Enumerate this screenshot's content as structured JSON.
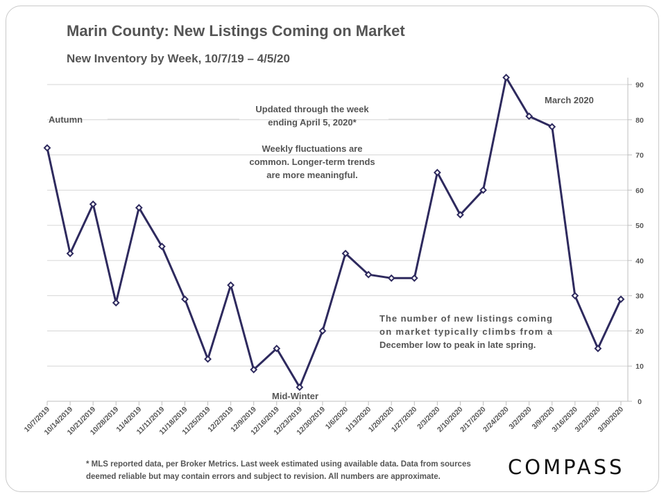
{
  "chart_data": {
    "type": "line",
    "title": "Marin County: New Listings Coming on Market",
    "subtitle": "New Inventory by Week, 10/7/19 – 4/5/20",
    "categories": [
      "10/7/2019",
      "10/14/2019",
      "10/21/2019",
      "10/28/2019",
      "11/4/2019",
      "11/11/2019",
      "11/18/2019",
      "11/25/2019",
      "12/2/2019",
      "12/9/2019",
      "12/16/2019",
      "12/23/2019",
      "12/30/2019",
      "1/6/2020",
      "1/13/2020",
      "1/20/2020",
      "1/27/2020",
      "2/3/2020",
      "2/10/2020",
      "2/17/2020",
      "2/24/2020",
      "3/2/2020",
      "3/9/2020",
      "3/16/2020",
      "3/23/2020",
      "3/30/2020"
    ],
    "values": [
      72,
      42,
      56,
      28,
      55,
      44,
      29,
      12,
      33,
      9,
      15,
      4,
      20,
      42,
      36,
      35,
      35,
      65,
      53,
      60,
      92,
      81,
      78,
      30,
      15,
      29
    ],
    "ylim": [
      0,
      90
    ],
    "yticks": [
      0,
      10,
      20,
      30,
      40,
      50,
      60,
      70,
      80,
      90
    ],
    "y_axis_side": "right",
    "grid": true,
    "line_color": "#2e2a5e",
    "annotations": {
      "autumn": "Autumn",
      "updated_1": "Updated through the week",
      "updated_2": "ending April 5, 2020*",
      "weekly_1": "Weekly fluctuations are",
      "weekly_2": "common. Longer-term trends",
      "weekly_3": "are more meaningful.",
      "march": "March 2020",
      "midwinter": "Mid-Winter",
      "trend_1": "The number of new listings coming",
      "trend_2": "on market typically climbs from a",
      "trend_3": "December low to peak in late spring."
    }
  },
  "footnote_line1": "* MLS reported data, per Broker Metrics. Last week estimated using available data. Data from sources",
  "footnote_line2": "deemed reliable but may contain errors and subject to revision. All numbers are approximate.",
  "logo": "COMPASS"
}
